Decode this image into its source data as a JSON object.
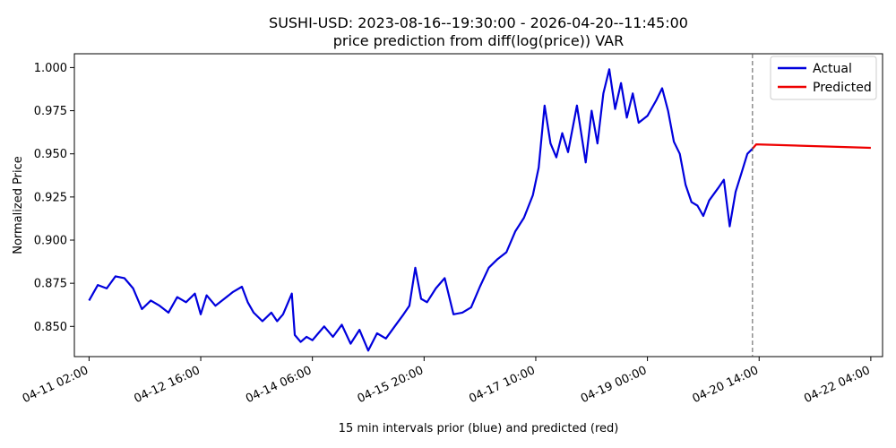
{
  "chart_data": {
    "type": "line",
    "title": "SUSHI-USD: 2023-08-16--19:30:00 - 2026-04-20--11:45:00",
    "subtitle": "price prediction from diff(log(price)) VAR",
    "xlabel": "15 min intervals prior (blue) and predicted (red)",
    "ylabel": "Normalized Price",
    "x_ticks": [
      "04-11 02:00",
      "04-12 16:00",
      "04-14 06:00",
      "04-15 20:00",
      "04-17 10:00",
      "04-19 00:00",
      "04-20 14:00",
      "04-22 04:00"
    ],
    "y_ticks": [
      "0.850",
      "0.875",
      "0.900",
      "0.925",
      "0.950",
      "0.975",
      "1.000"
    ],
    "ylim": [
      0.8325,
      1.008
    ],
    "xlim": [
      "04-10 21:00",
      "04-22 08:00"
    ],
    "split_time": "04-20 11:45",
    "legend_position": "top-right",
    "series": [
      {
        "name": "Actual",
        "color": "#0000dd",
        "points": [
          [
            "04-11 02:00",
            0.865
          ],
          [
            "04-11 05:00",
            0.874
          ],
          [
            "04-11 08:00",
            0.872
          ],
          [
            "04-11 11:00",
            0.879
          ],
          [
            "04-11 14:00",
            0.878
          ],
          [
            "04-11 17:00",
            0.872
          ],
          [
            "04-11 20:00",
            0.86
          ],
          [
            "04-11 23:00",
            0.865
          ],
          [
            "04-12 02:00",
            0.862
          ],
          [
            "04-12 05:00",
            0.858
          ],
          [
            "04-12 08:00",
            0.867
          ],
          [
            "04-12 11:00",
            0.864
          ],
          [
            "04-12 14:00",
            0.869
          ],
          [
            "04-12 16:00",
            0.857
          ],
          [
            "04-12 18:00",
            0.868
          ],
          [
            "04-12 21:00",
            0.862
          ],
          [
            "04-13 00:00",
            0.866
          ],
          [
            "04-13 03:00",
            0.87
          ],
          [
            "04-13 06:00",
            0.873
          ],
          [
            "04-13 08:00",
            0.864
          ],
          [
            "04-13 10:00",
            0.858
          ],
          [
            "04-13 13:00",
            0.853
          ],
          [
            "04-13 16:00",
            0.858
          ],
          [
            "04-13 18:00",
            0.853
          ],
          [
            "04-13 20:00",
            0.857
          ],
          [
            "04-13 23:00",
            0.869
          ],
          [
            "04-14 00:00",
            0.845
          ],
          [
            "04-14 02:00",
            0.841
          ],
          [
            "04-14 04:00",
            0.844
          ],
          [
            "04-14 06:00",
            0.842
          ],
          [
            "04-14 08:00",
            0.846
          ],
          [
            "04-14 10:00",
            0.85
          ],
          [
            "04-14 13:00",
            0.844
          ],
          [
            "04-14 16:00",
            0.851
          ],
          [
            "04-14 19:00",
            0.84
          ],
          [
            "04-14 22:00",
            0.848
          ],
          [
            "04-15 01:00",
            0.836
          ],
          [
            "04-15 04:00",
            0.846
          ],
          [
            "04-15 07:00",
            0.843
          ],
          [
            "04-15 10:00",
            0.85
          ],
          [
            "04-15 13:00",
            0.857
          ],
          [
            "04-15 15:00",
            0.862
          ],
          [
            "04-15 17:00",
            0.884
          ],
          [
            "04-15 19:00",
            0.866
          ],
          [
            "04-15 21:00",
            0.864
          ],
          [
            "04-16 00:00",
            0.872
          ],
          [
            "04-16 03:00",
            0.878
          ],
          [
            "04-16 06:00",
            0.857
          ],
          [
            "04-16 09:00",
            0.858
          ],
          [
            "04-16 12:00",
            0.861
          ],
          [
            "04-16 15:00",
            0.873
          ],
          [
            "04-16 18:00",
            0.884
          ],
          [
            "04-16 21:00",
            0.889
          ],
          [
            "04-17 00:00",
            0.893
          ],
          [
            "04-17 03:00",
            0.905
          ],
          [
            "04-17 06:00",
            0.913
          ],
          [
            "04-17 09:00",
            0.926
          ],
          [
            "04-17 11:00",
            0.942
          ],
          [
            "04-17 13:00",
            0.978
          ],
          [
            "04-17 15:00",
            0.956
          ],
          [
            "04-17 17:00",
            0.948
          ],
          [
            "04-17 19:00",
            0.962
          ],
          [
            "04-17 21:00",
            0.951
          ],
          [
            "04-18 00:00",
            0.978
          ],
          [
            "04-18 03:00",
            0.945
          ],
          [
            "04-18 05:00",
            0.975
          ],
          [
            "04-18 07:00",
            0.956
          ],
          [
            "04-18 09:00",
            0.985
          ],
          [
            "04-18 11:00",
            0.999
          ],
          [
            "04-18 13:00",
            0.976
          ],
          [
            "04-18 15:00",
            0.991
          ],
          [
            "04-18 17:00",
            0.971
          ],
          [
            "04-18 19:00",
            0.985
          ],
          [
            "04-18 21:00",
            0.968
          ],
          [
            "04-19 00:00",
            0.972
          ],
          [
            "04-19 03:00",
            0.981
          ],
          [
            "04-19 05:00",
            0.988
          ],
          [
            "04-19 07:00",
            0.975
          ],
          [
            "04-19 09:00",
            0.957
          ],
          [
            "04-19 11:00",
            0.95
          ],
          [
            "04-19 13:00",
            0.932
          ],
          [
            "04-19 15:00",
            0.922
          ],
          [
            "04-19 17:00",
            0.92
          ],
          [
            "04-19 19:00",
            0.914
          ],
          [
            "04-19 21:00",
            0.923
          ],
          [
            "04-20 00:00",
            0.93
          ],
          [
            "04-20 02:00",
            0.935
          ],
          [
            "04-20 04:00",
            0.908
          ],
          [
            "04-20 06:00",
            0.928
          ],
          [
            "04-20 08:00",
            0.939
          ],
          [
            "04-20 10:00",
            0.95
          ],
          [
            "04-20 11:45",
            0.953
          ]
        ]
      },
      {
        "name": "Predicted",
        "color": "#ee0000",
        "points": [
          [
            "04-20 11:45",
            0.953
          ],
          [
            "04-20 13:00",
            0.9555
          ],
          [
            "04-22 04:00",
            0.9535
          ]
        ]
      }
    ]
  }
}
